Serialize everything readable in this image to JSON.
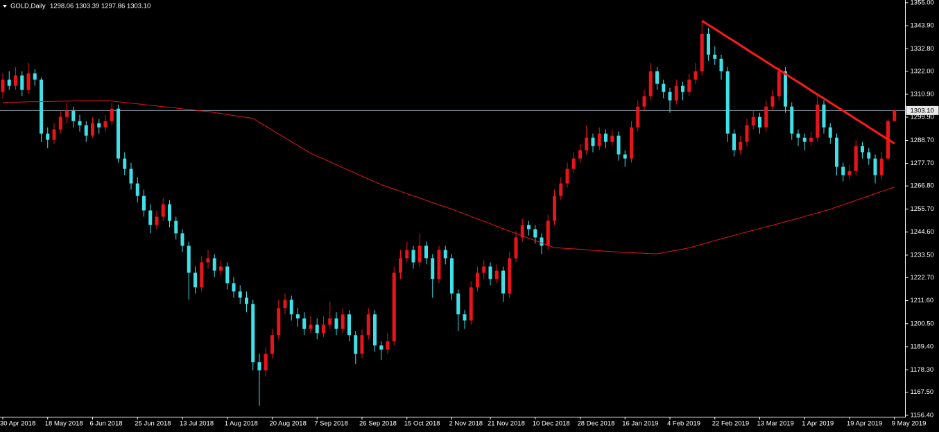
{
  "chart_data": {
    "type": "candlestick",
    "title": "GOLD,Daily",
    "quote": "1298.06 1303.39 1297.86 1303.10",
    "up_color": "#e8141c",
    "down_color": "#3fe0e8",
    "grid": false,
    "ylim": [
      1155.7,
      1356.3
    ],
    "yticks": [
      {
        "value": 1355,
        "label": "1355.00"
      },
      {
        "value": 1343.9,
        "label": "1343.90"
      },
      {
        "value": 1332.8,
        "label": "1332.80"
      },
      {
        "value": 1322,
        "label": "1322.00"
      },
      {
        "value": 1310.9,
        "label": "1310.90"
      },
      {
        "value": 1299.9,
        "label": "1299.90"
      },
      {
        "value": 1288.7,
        "label": "1288.70"
      },
      {
        "value": 1277.7,
        "label": "1277.70"
      },
      {
        "value": 1266.8,
        "label": "1266.80"
      },
      {
        "value": 1255.7,
        "label": "1255.70"
      },
      {
        "value": 1244.6,
        "label": "1244.60"
      },
      {
        "value": 1233.5,
        "label": "1233.50"
      },
      {
        "value": 1222.7,
        "label": "1222.70"
      },
      {
        "value": 1211.6,
        "label": "1211.60"
      },
      {
        "value": 1200.5,
        "label": "1200.50"
      },
      {
        "value": 1189.4,
        "label": "1189.40"
      },
      {
        "value": 1178.3,
        "label": "1178.30"
      },
      {
        "value": 1167.5,
        "label": "1167.50"
      },
      {
        "value": 1156.4,
        "label": "1156.40"
      }
    ],
    "price_line": {
      "value": 1303.1,
      "label": "1303.10",
      "color": "#8a9aa8"
    },
    "categories": [
      "30 Apr 2018",
      null,
      null,
      null,
      null,
      null,
      null,
      "18 May 2018",
      null,
      null,
      null,
      null,
      null,
      null,
      "6 Jun 2018",
      null,
      null,
      null,
      null,
      null,
      null,
      "25 Jun 2018",
      null,
      null,
      null,
      null,
      null,
      null,
      "13 Jul 2018",
      null,
      null,
      null,
      null,
      null,
      null,
      "1 Aug 2018",
      null,
      null,
      null,
      null,
      null,
      null,
      "20 Aug 2018",
      null,
      null,
      null,
      null,
      null,
      null,
      "7 Sep 2018",
      null,
      null,
      null,
      null,
      null,
      null,
      "26 Sep 2018",
      null,
      null,
      null,
      null,
      null,
      null,
      "15 Oct 2018",
      null,
      null,
      null,
      null,
      null,
      null,
      "2 Nov 2018",
      null,
      null,
      null,
      null,
      null,
      "21 Nov 2018",
      null,
      null,
      null,
      null,
      null,
      null,
      "10 Dec 2018",
      null,
      null,
      null,
      null,
      null,
      null,
      "28 Dec 2018",
      null,
      null,
      null,
      null,
      null,
      null,
      "16 Jan 2019",
      null,
      null,
      null,
      null,
      null,
      null,
      "4 Feb 2019",
      null,
      null,
      null,
      null,
      null,
      null,
      "22 Feb 2019",
      null,
      null,
      null,
      null,
      null,
      null,
      "13 Mar 2019",
      null,
      null,
      null,
      null,
      null,
      null,
      "1 Apr 2019",
      null,
      null,
      null,
      null,
      null,
      null,
      "19 Apr 2019",
      null,
      null,
      null,
      null,
      null,
      null,
      "9 May 2019"
    ],
    "ohlc": [
      [
        1312,
        1321,
        1309,
        1318
      ],
      [
        1318,
        1322,
        1313,
        1315
      ],
      [
        1315,
        1324,
        1313,
        1320
      ],
      [
        1320,
        1322,
        1310,
        1313
      ],
      [
        1313,
        1326,
        1311,
        1321
      ],
      [
        1321,
        1323,
        1315,
        1318
      ],
      [
        1318,
        1319,
        1288,
        1292
      ],
      [
        1292,
        1295,
        1285,
        1289
      ],
      [
        1289,
        1297,
        1287,
        1294
      ],
      [
        1294,
        1303,
        1292,
        1300
      ],
      [
        1300,
        1307,
        1297,
        1303
      ],
      [
        1303,
        1305,
        1295,
        1298
      ],
      [
        1298,
        1301,
        1293,
        1296
      ],
      [
        1296,
        1298,
        1288,
        1291
      ],
      [
        1291,
        1300,
        1290,
        1297
      ],
      [
        1297,
        1299,
        1292,
        1295
      ],
      [
        1295,
        1301,
        1293,
        1298
      ],
      [
        1298,
        1307,
        1296,
        1304
      ],
      [
        1304,
        1306,
        1278,
        1280
      ],
      [
        1280,
        1283,
        1272,
        1275
      ],
      [
        1275,
        1278,
        1265,
        1268
      ],
      [
        1268,
        1271,
        1259,
        1262
      ],
      [
        1262,
        1265,
        1252,
        1255
      ],
      [
        1255,
        1258,
        1244,
        1248
      ],
      [
        1248,
        1255,
        1246,
        1252
      ],
      [
        1252,
        1261,
        1250,
        1258
      ],
      [
        1258,
        1260,
        1247,
        1250
      ],
      [
        1250,
        1252,
        1241,
        1244
      ],
      [
        1244,
        1246,
        1235,
        1238
      ],
      [
        1238,
        1240,
        1212,
        1225
      ],
      [
        1225,
        1228,
        1215,
        1218
      ],
      [
        1218,
        1233,
        1216,
        1230
      ],
      [
        1230,
        1236,
        1227,
        1232
      ],
      [
        1232,
        1234,
        1223,
        1226
      ],
      [
        1226,
        1231,
        1224,
        1228
      ],
      [
        1228,
        1230,
        1217,
        1220
      ],
      [
        1220,
        1223,
        1213,
        1216
      ],
      [
        1216,
        1219,
        1210,
        1213
      ],
      [
        1213,
        1216,
        1206,
        1210
      ],
      [
        1210,
        1212,
        1178,
        1182
      ],
      [
        1182,
        1186,
        1161,
        1178
      ],
      [
        1178,
        1189,
        1175,
        1186
      ],
      [
        1186,
        1198,
        1184,
        1195
      ],
      [
        1195,
        1212,
        1193,
        1208
      ],
      [
        1208,
        1215,
        1205,
        1212
      ],
      [
        1212,
        1214,
        1202,
        1205
      ],
      [
        1205,
        1208,
        1199,
        1203
      ],
      [
        1203,
        1206,
        1195,
        1198
      ],
      [
        1198,
        1204,
        1196,
        1200
      ],
      [
        1200,
        1203,
        1193,
        1196
      ],
      [
        1196,
        1204,
        1194,
        1200
      ],
      [
        1200,
        1211,
        1198,
        1203
      ],
      [
        1203,
        1206,
        1195,
        1198
      ],
      [
        1198,
        1208,
        1196,
        1205
      ],
      [
        1205,
        1207,
        1192,
        1195
      ],
      [
        1195,
        1197,
        1181,
        1186
      ],
      [
        1186,
        1198,
        1184,
        1195
      ],
      [
        1195,
        1208,
        1193,
        1205
      ],
      [
        1205,
        1207,
        1187,
        1190
      ],
      [
        1190,
        1192,
        1183,
        1188
      ],
      [
        1188,
        1196,
        1186,
        1192
      ],
      [
        1192,
        1228,
        1190,
        1225
      ],
      [
        1225,
        1236,
        1222,
        1232
      ],
      [
        1232,
        1240,
        1230,
        1236
      ],
      [
        1236,
        1238,
        1227,
        1230
      ],
      [
        1230,
        1244,
        1228,
        1238
      ],
      [
        1238,
        1240,
        1229,
        1232
      ],
      [
        1232,
        1234,
        1213,
        1222
      ],
      [
        1222,
        1238,
        1220,
        1236
      ],
      [
        1236,
        1238,
        1229,
        1232
      ],
      [
        1232,
        1234,
        1212,
        1215
      ],
      [
        1215,
        1217,
        1197,
        1205
      ],
      [
        1205,
        1207,
        1198,
        1202
      ],
      [
        1202,
        1221,
        1200,
        1218
      ],
      [
        1218,
        1228,
        1216,
        1225
      ],
      [
        1225,
        1231,
        1222,
        1228
      ],
      [
        1228,
        1230,
        1219,
        1222
      ],
      [
        1222,
        1229,
        1220,
        1226
      ],
      [
        1226,
        1228,
        1211,
        1215
      ],
      [
        1215,
        1235,
        1213,
        1232
      ],
      [
        1232,
        1245,
        1230,
        1242
      ],
      [
        1242,
        1251,
        1240,
        1248
      ],
      [
        1248,
        1250,
        1243,
        1246
      ],
      [
        1246,
        1248,
        1239,
        1242
      ],
      [
        1242,
        1244,
        1234,
        1238
      ],
      [
        1238,
        1253,
        1236,
        1250
      ],
      [
        1250,
        1265,
        1248,
        1262
      ],
      [
        1262,
        1271,
        1260,
        1268
      ],
      [
        1268,
        1278,
        1266,
        1275
      ],
      [
        1275,
        1283,
        1273,
        1280
      ],
      [
        1280,
        1287,
        1278,
        1284
      ],
      [
        1284,
        1296,
        1282,
        1290
      ],
      [
        1290,
        1292,
        1283,
        1286
      ],
      [
        1286,
        1295,
        1284,
        1292
      ],
      [
        1292,
        1294,
        1285,
        1288
      ],
      [
        1288,
        1294,
        1286,
        1291
      ],
      [
        1291,
        1293,
        1279,
        1282
      ],
      [
        1282,
        1284,
        1276,
        1280
      ],
      [
        1280,
        1298,
        1278,
        1295
      ],
      [
        1295,
        1308,
        1293,
        1305
      ],
      [
        1305,
        1313,
        1303,
        1310
      ],
      [
        1310,
        1326,
        1308,
        1322
      ],
      [
        1322,
        1324,
        1313,
        1316
      ],
      [
        1316,
        1318,
        1309,
        1312
      ],
      [
        1312,
        1314,
        1302,
        1308
      ],
      [
        1308,
        1318,
        1306,
        1315
      ],
      [
        1315,
        1317,
        1308,
        1312
      ],
      [
        1312,
        1321,
        1310,
        1318
      ],
      [
        1318,
        1326,
        1316,
        1322
      ],
      [
        1322,
        1346,
        1320,
        1340
      ],
      [
        1340,
        1343,
        1327,
        1330
      ],
      [
        1330,
        1334,
        1325,
        1328
      ],
      [
        1328,
        1330,
        1318,
        1322
      ],
      [
        1322,
        1324,
        1288,
        1292
      ],
      [
        1292,
        1294,
        1281,
        1284
      ],
      [
        1284,
        1291,
        1282,
        1288
      ],
      [
        1288,
        1299,
        1286,
        1296
      ],
      [
        1296,
        1303,
        1294,
        1300
      ],
      [
        1300,
        1302,
        1292,
        1295
      ],
      [
        1295,
        1308,
        1293,
        1305
      ],
      [
        1305,
        1313,
        1303,
        1310
      ],
      [
        1310,
        1324,
        1308,
        1322
      ],
      [
        1322,
        1324,
        1302,
        1305
      ],
      [
        1305,
        1307,
        1289,
        1292
      ],
      [
        1292,
        1294,
        1286,
        1290
      ],
      [
        1290,
        1292,
        1284,
        1288
      ],
      [
        1288,
        1293,
        1286,
        1290
      ],
      [
        1290,
        1310,
        1288,
        1306
      ],
      [
        1306,
        1308,
        1292,
        1295
      ],
      [
        1295,
        1297,
        1287,
        1290
      ],
      [
        1290,
        1292,
        1272,
        1276
      ],
      [
        1276,
        1278,
        1269,
        1272
      ],
      [
        1272,
        1277,
        1270,
        1274
      ],
      [
        1274,
        1289,
        1272,
        1286
      ],
      [
        1286,
        1288,
        1280,
        1283
      ],
      [
        1283,
        1285,
        1277,
        1280
      ],
      [
        1280,
        1282,
        1268,
        1272
      ],
      [
        1272,
        1283,
        1270,
        1280
      ],
      [
        1280,
        1299,
        1279,
        1298.1
      ],
      [
        1298.06,
        1303.39,
        1297.86,
        1303.1
      ]
    ],
    "moving_average": {
      "color": "#e8141c",
      "values": [
        1307.0,
        1307.1,
        1307.1,
        1307.2,
        1307.3,
        1307.3,
        1307.4,
        1307.4,
        1307.5,
        1307.6,
        1307.6,
        1307.7,
        1307.8,
        1307.8,
        1307.9,
        1307.9,
        1308.0,
        1307.7,
        1307.3,
        1307.0,
        1306.7,
        1306.3,
        1306.0,
        1305.6,
        1305.3,
        1305.0,
        1304.6,
        1304.3,
        1303.9,
        1303.6,
        1303.3,
        1302.9,
        1302.6,
        1302.1,
        1301.7,
        1301.2,
        1300.7,
        1300.2,
        1299.8,
        1299.3,
        1297.4,
        1295.6,
        1293.7,
        1291.8,
        1290.0,
        1288.1,
        1286.2,
        1284.4,
        1282.5,
        1281.1,
        1279.8,
        1278.4,
        1277.0,
        1275.6,
        1274.3,
        1272.9,
        1271.5,
        1270.1,
        1268.8,
        1267.4,
        1266.3,
        1265.3,
        1264.2,
        1263.1,
        1262.0,
        1261.0,
        1259.9,
        1258.8,
        1257.7,
        1256.7,
        1255.6,
        1254.4,
        1253.3,
        1252.1,
        1250.9,
        1249.8,
        1248.6,
        1247.4,
        1246.2,
        1245.1,
        1243.9,
        1242.8,
        1241.6,
        1240.5,
        1239.4,
        1238.2,
        1237.1,
        1236.9,
        1236.7,
        1236.5,
        1236.3,
        1236.1,
        1235.8,
        1235.6,
        1235.4,
        1235.2,
        1235.0,
        1234.8,
        1234.7,
        1234.5,
        1234.4,
        1234.2,
        1234.1,
        1234.7,
        1235.3,
        1235.8,
        1236.4,
        1237.0,
        1237.9,
        1238.7,
        1239.6,
        1240.5,
        1241.3,
        1242.2,
        1243.0,
        1243.8,
        1244.7,
        1245.5,
        1246.3,
        1247.1,
        1247.9,
        1248.7,
        1249.6,
        1250.4,
        1251.2,
        1252.1,
        1253.0,
        1253.8,
        1254.7,
        1255.6,
        1256.7,
        1257.7,
        1258.8,
        1259.9,
        1260.9,
        1262.0,
        1263.1,
        1264.2,
        1265.2,
        1266.3
      ]
    },
    "trendline": {
      "color": "#ff1a1a",
      "values": [
        null,
        null,
        null,
        null,
        null,
        null,
        null,
        null,
        null,
        null,
        null,
        null,
        null,
        null,
        null,
        null,
        null,
        null,
        null,
        null,
        null,
        null,
        null,
        null,
        null,
        null,
        null,
        null,
        null,
        null,
        null,
        null,
        null,
        null,
        null,
        null,
        null,
        null,
        null,
        null,
        null,
        null,
        null,
        null,
        null,
        null,
        null,
        null,
        null,
        null,
        null,
        null,
        null,
        null,
        null,
        null,
        null,
        null,
        null,
        null,
        null,
        null,
        null,
        null,
        null,
        null,
        null,
        null,
        null,
        null,
        null,
        null,
        null,
        null,
        null,
        null,
        null,
        null,
        null,
        null,
        null,
        null,
        null,
        null,
        null,
        null,
        null,
        null,
        null,
        null,
        null,
        null,
        null,
        null,
        null,
        null,
        null,
        null,
        null,
        null,
        null,
        null,
        null,
        null,
        null,
        null,
        null,
        null,
        null,
        1346.3,
        1344.3,
        1342.4,
        1340.4,
        1338.4,
        1336.5,
        1334.5,
        1332.5,
        1330.5,
        1328.6,
        1326.6,
        1324.6,
        1322.7,
        1320.7,
        1318.7,
        1316.8,
        1314.8,
        1312.8,
        1310.8,
        1308.9,
        1306.9,
        1304.9,
        1303.0,
        1301.0,
        1299.0,
        1297.1,
        1295.1,
        1293.1,
        1291.1,
        1289.2,
        1287.2
      ]
    }
  }
}
